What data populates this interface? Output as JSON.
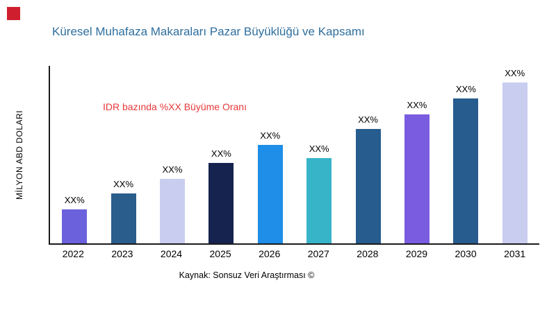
{
  "page": {
    "background_color": "#ffffff",
    "brand_square_color": "#cf1f2e"
  },
  "header": {
    "title": "Küresel Muhafaza Makaraları Pazar Büyüklüğü ve Kapsamı",
    "title_color": "#2e6e9e"
  },
  "annotation": {
    "text": "IDR bazında %XX Büyüme Oranı",
    "color": "#e8393a"
  },
  "footer": {
    "source": "Kaynak: Sonsuz Veri Araştırması ©"
  },
  "chart_data": {
    "type": "bar",
    "title": "Küresel Muhafaza Makaraları Pazar Büyüklüğü ve Kapsamı",
    "xlabel": "",
    "ylabel": "MİLYON ABD DOLARI",
    "categories": [
      "2022",
      "2023",
      "2024",
      "2025",
      "2026",
      "2027",
      "2028",
      "2029",
      "2030",
      "2031"
    ],
    "values": [
      21,
      31,
      40,
      50,
      61,
      53,
      71,
      80,
      90,
      100
    ],
    "values_note": "Bars are unlabeled numerically on screen (placeholder XX%); values are relative heights in percent of tallest bar (2031 = 100).",
    "value_labels": [
      "XX%",
      "XX%",
      "XX%",
      "XX%",
      "XX%",
      "XX%",
      "XX%",
      "XX%",
      "XX%",
      "XX%"
    ],
    "bar_colors": [
      "#6c61dd",
      "#2a5d8c",
      "#c9cdf0",
      "#17234f",
      "#1e8ee8",
      "#38b4c9",
      "#275c8e",
      "#7a5ce0",
      "#275c8e",
      "#c9cdf0"
    ],
    "grid": false,
    "legend": false,
    "ylim_note": "No numeric y-axis ticks shown"
  }
}
